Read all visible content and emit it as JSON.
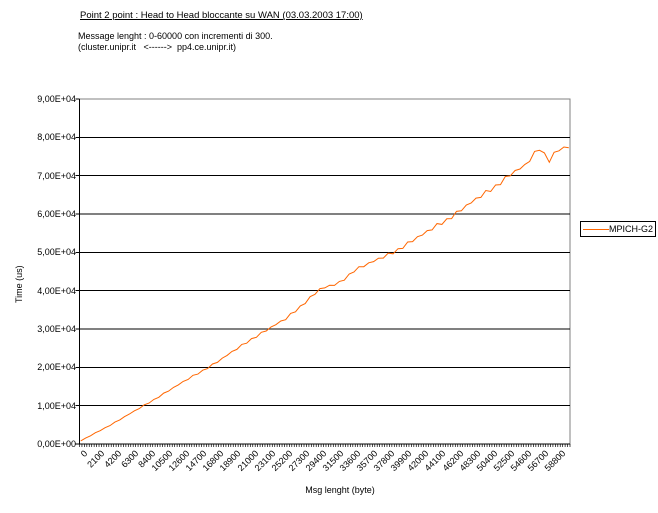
{
  "header": {
    "title": "Point 2 point : Head to Head bloccante su WAN (03.03.2003 17:00)",
    "subtitle1": "Message lenght : 0-60000 con incrementi di 300.",
    "subtitle2": "(cluster.unipr.it   <------>  pp4.ce.unipr.it)"
  },
  "legend": {
    "items": [
      {
        "label": "MPICH-G2",
        "color": "#FF6600"
      }
    ]
  },
  "axes": {
    "x_label": "Msg lenght (byte)",
    "y_label": "Time (us)",
    "y_tick_labels": [
      "0,00E+00",
      "1,00E+04",
      "2,00E+04",
      "3,00E+04",
      "4,00E+04",
      "5,00E+04",
      "6,00E+04",
      "7,00E+04",
      "8,00E+04",
      "9,00E+04"
    ],
    "x_tick_labels": [
      "0",
      "2100",
      "4200",
      "6300",
      "8400",
      "10500",
      "12600",
      "14700",
      "16800",
      "18900",
      "21000",
      "23100",
      "25200",
      "27300",
      "29400",
      "31500",
      "33600",
      "35700",
      "37800",
      "39900",
      "42000",
      "44100",
      "46200",
      "48300",
      "50400",
      "52500",
      "54600",
      "56700",
      "58800"
    ]
  },
  "colors": {
    "series": "#FF6600",
    "gridline": "#000000",
    "plot_border": "#808080",
    "axis": "#000000"
  },
  "chart_data": {
    "type": "line",
    "title": "Point 2 point : Head to Head bloccante su WAN (03.03.2003 17:00)",
    "xlabel": "Msg lenght (byte)",
    "ylabel": "Time (us)",
    "xlim": [
      0,
      60000
    ],
    "ylim": [
      0,
      90000
    ],
    "x_raw_increment": 300,
    "x_tick_interval": 2100,
    "y_tick_interval": 10000,
    "grid": "horizontal",
    "legend_position": "right",
    "series": [
      {
        "name": "MPICH-G2",
        "color": "#FF6600",
        "x_start": 0,
        "x_step": 600,
        "values": [
          800,
          1540,
          2130,
          2950,
          3460,
          4260,
          4800,
          5700,
          6290,
          7160,
          7830,
          8670,
          9240,
          10220,
          10660,
          11630,
          12170,
          13270,
          13810,
          14770,
          15430,
          16340,
          16830,
          17910,
          18240,
          19250,
          19670,
          20870,
          21290,
          22410,
          23110,
          24160,
          24690,
          25980,
          26300,
          27500,
          27830,
          29150,
          29490,
          30560,
          31110,
          32090,
          32430,
          34060,
          34500,
          36020,
          36620,
          38420,
          39040,
          40530,
          40730,
          41420,
          41370,
          42420,
          42740,
          44350,
          44860,
          46250,
          46250,
          47280,
          47590,
          48470,
          48490,
          49790,
          49630,
          50950,
          51020,
          52700,
          52800,
          54070,
          54500,
          55670,
          55860,
          57500,
          57290,
          58760,
          58810,
          60680,
          60840,
          62320,
          62860,
          64150,
          64320,
          66130,
          65880,
          67560,
          67660,
          69790,
          69930,
          71350,
          71730,
          72950,
          73730,
          76320,
          76620,
          75930,
          73490,
          76090,
          76500,
          77470,
          77300
        ]
      }
    ]
  }
}
